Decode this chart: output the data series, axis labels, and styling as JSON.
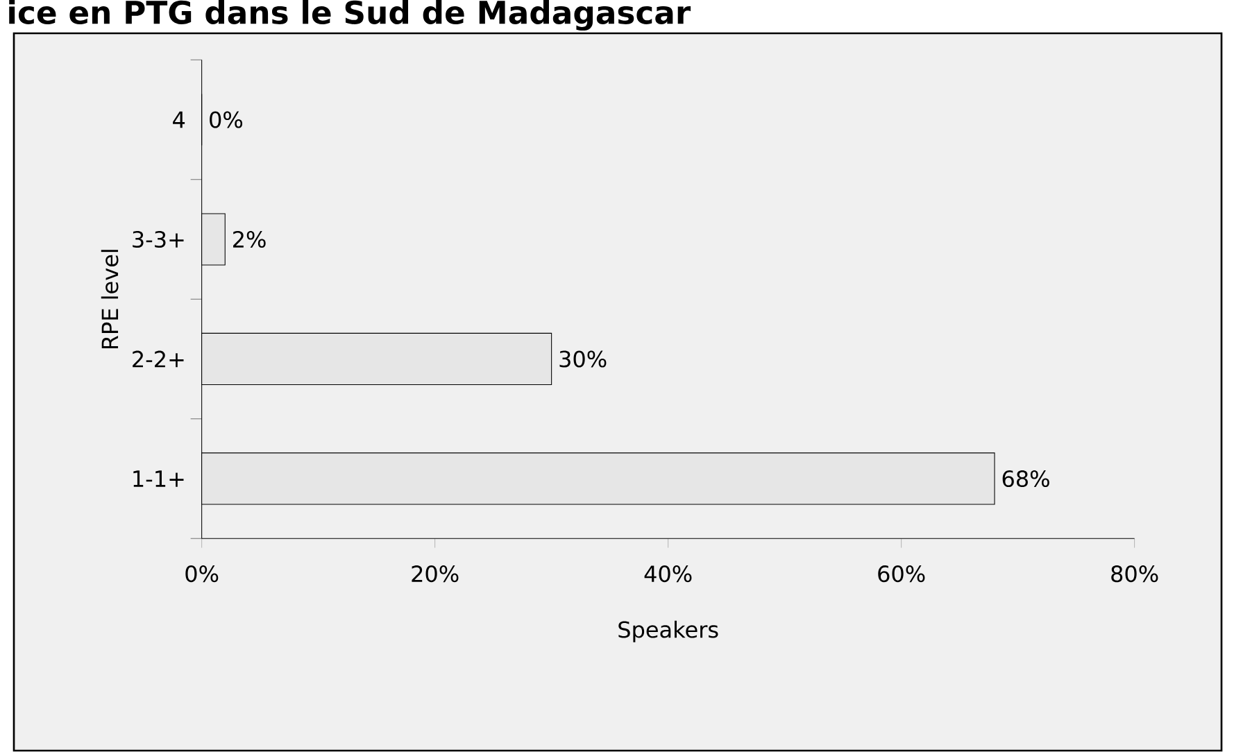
{
  "chart_data": {
    "type": "bar",
    "orientation": "horizontal",
    "title": "ice en PTG dans le Sud de Madagascar",
    "xlabel": "Speakers",
    "ylabel": "RPE level",
    "categories": [
      "4",
      "3-3+",
      "2-2+",
      "1-1+"
    ],
    "values": [
      0,
      2,
      30,
      68
    ],
    "value_labels": [
      "0%",
      "2%",
      "30%",
      "68%"
    ],
    "color": "#e6e6e6",
    "xlim": [
      0,
      80
    ],
    "xticks": [
      {
        "value": 0,
        "label": "0%"
      },
      {
        "value": 20,
        "label": "20%"
      },
      {
        "value": 40,
        "label": "40%"
      },
      {
        "value": 60,
        "label": "60%"
      },
      {
        "value": 80,
        "label": "80%"
      }
    ],
    "grid": false
  }
}
